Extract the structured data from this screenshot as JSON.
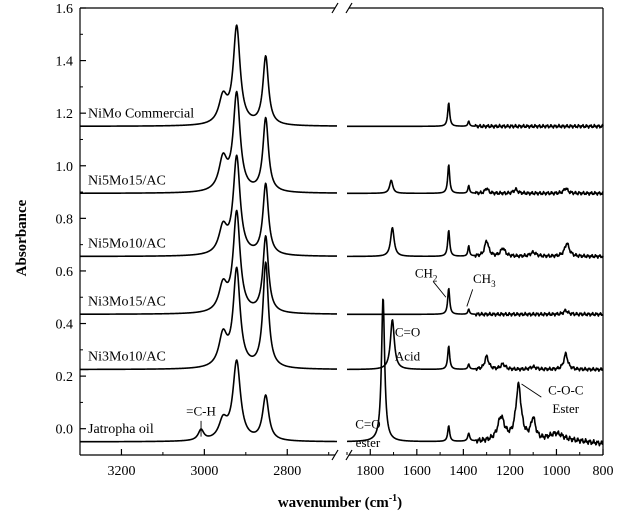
{
  "chart_data": {
    "type": "line",
    "title": "",
    "xlabel": "wavenumber (cm-1)",
    "ylabel": "Absorbance",
    "x_axis_break": true,
    "x_segments": [
      {
        "xlim": [
          3300,
          2680
        ],
        "ticks": [
          3200,
          3000,
          2800
        ]
      },
      {
        "xlim": [
          1900,
          800
        ],
        "ticks": [
          1800,
          1600,
          1400,
          1200,
          1000,
          800
        ]
      }
    ],
    "ylim": [
      -0.1,
      1.6
    ],
    "yticks": [
      0.0,
      0.2,
      0.4,
      0.6,
      0.8,
      1.0,
      1.2,
      1.4,
      1.6
    ],
    "grid": false,
    "legend": "none",
    "series": [
      {
        "name": "NiMo Commercial",
        "baseline": 1.15,
        "peaks": [
          {
            "x": 2955,
            "h": 0.1,
            "w": 12
          },
          {
            "x": 2922,
            "h": 0.37,
            "w": 10
          },
          {
            "x": 2852,
            "h": 0.26,
            "w": 8
          },
          {
            "x": 1463,
            "h": 0.09,
            "w": 5
          },
          {
            "x": 1377,
            "h": 0.02,
            "w": 4
          }
        ]
      },
      {
        "name": "Ni5Mo15/AC",
        "baseline": 0.895,
        "peaks": [
          {
            "x": 2955,
            "h": 0.12,
            "w": 12
          },
          {
            "x": 2922,
            "h": 0.37,
            "w": 10
          },
          {
            "x": 2852,
            "h": 0.28,
            "w": 8
          },
          {
            "x": 1710,
            "h": 0.05,
            "w": 8
          },
          {
            "x": 1463,
            "h": 0.11,
            "w": 5
          },
          {
            "x": 1377,
            "h": 0.03,
            "w": 4
          },
          {
            "x": 1300,
            "h": 0.02,
            "w": 8
          },
          {
            "x": 1175,
            "h": 0.015,
            "w": 10
          },
          {
            "x": 960,
            "h": 0.02,
            "w": 10
          }
        ]
      },
      {
        "name": "Ni5Mo10/AC",
        "baseline": 0.655,
        "peaks": [
          {
            "x": 2955,
            "h": 0.1,
            "w": 12
          },
          {
            "x": 2922,
            "h": 0.37,
            "w": 10
          },
          {
            "x": 2852,
            "h": 0.27,
            "w": 8
          },
          {
            "x": 1705,
            "h": 0.11,
            "w": 9
          },
          {
            "x": 1463,
            "h": 0.1,
            "w": 5
          },
          {
            "x": 1377,
            "h": 0.04,
            "w": 4
          },
          {
            "x": 1300,
            "h": 0.06,
            "w": 10
          },
          {
            "x": 1230,
            "h": 0.03,
            "w": 12
          },
          {
            "x": 1100,
            "h": 0.015,
            "w": 15
          },
          {
            "x": 955,
            "h": 0.05,
            "w": 12
          }
        ]
      },
      {
        "name": "Ni3Mo15/AC",
        "baseline": 0.435,
        "peaks": [
          {
            "x": 2955,
            "h": 0.1,
            "w": 12
          },
          {
            "x": 2922,
            "h": 0.38,
            "w": 10
          },
          {
            "x": 2852,
            "h": 0.29,
            "w": 8
          },
          {
            "x": 1463,
            "h": 0.1,
            "w": 5
          },
          {
            "x": 1377,
            "h": 0.02,
            "w": 4
          },
          {
            "x": 960,
            "h": 0.015,
            "w": 10
          }
        ]
      },
      {
        "name": "Ni3Mo10/AC",
        "baseline": 0.225,
        "peaks": [
          {
            "x": 2955,
            "h": 0.12,
            "w": 12
          },
          {
            "x": 2922,
            "h": 0.37,
            "w": 10
          },
          {
            "x": 2852,
            "h": 0.4,
            "w": 8
          },
          {
            "x": 1705,
            "h": 0.19,
            "w": 10
          },
          {
            "x": 1463,
            "h": 0.09,
            "w": 5
          },
          {
            "x": 1377,
            "h": 0.02,
            "w": 4
          },
          {
            "x": 1300,
            "h": 0.05,
            "w": 10
          },
          {
            "x": 1230,
            "h": 0.02,
            "w": 12
          },
          {
            "x": 1100,
            "h": 0.01,
            "w": 15
          },
          {
            "x": 960,
            "h": 0.06,
            "w": 10
          }
        ]
      },
      {
        "name": "Jatropha oil",
        "baseline": -0.05,
        "peaks": [
          {
            "x": 3008,
            "h": 0.04,
            "w": 8
          },
          {
            "x": 2955,
            "h": 0.07,
            "w": 12
          },
          {
            "x": 2922,
            "h": 0.3,
            "w": 11
          },
          {
            "x": 2852,
            "h": 0.17,
            "w": 9
          },
          {
            "x": 1745,
            "h": 0.55,
            "w": 8
          },
          {
            "x": 1463,
            "h": 0.06,
            "w": 5
          },
          {
            "x": 1377,
            "h": 0.03,
            "w": 5
          },
          {
            "x": 1238,
            "h": 0.09,
            "w": 18
          },
          {
            "x": 1163,
            "h": 0.21,
            "w": 14
          },
          {
            "x": 1100,
            "h": 0.08,
            "w": 12
          },
          {
            "x": 1000,
            "h": 0.03,
            "w": 40
          }
        ]
      }
    ],
    "annotations": [
      {
        "text": "=C-H",
        "x": 3008,
        "y": 0.05
      },
      {
        "text": "C=O",
        "x": 1810,
        "y": 0.0
      },
      {
        "text": "ester",
        "x": 1810,
        "y": -0.07
      },
      {
        "text": "C=O",
        "x": 1640,
        "y": 0.35
      },
      {
        "text": "Acid",
        "x": 1640,
        "y": 0.26
      },
      {
        "text": "CH2",
        "x": 1560,
        "y": 0.575
      },
      {
        "text": "CH3",
        "x": 1310,
        "y": 0.555
      },
      {
        "text": "C-O-C",
        "x": 960,
        "y": 0.13
      },
      {
        "text": "Ester",
        "x": 960,
        "y": 0.06
      }
    ]
  }
}
